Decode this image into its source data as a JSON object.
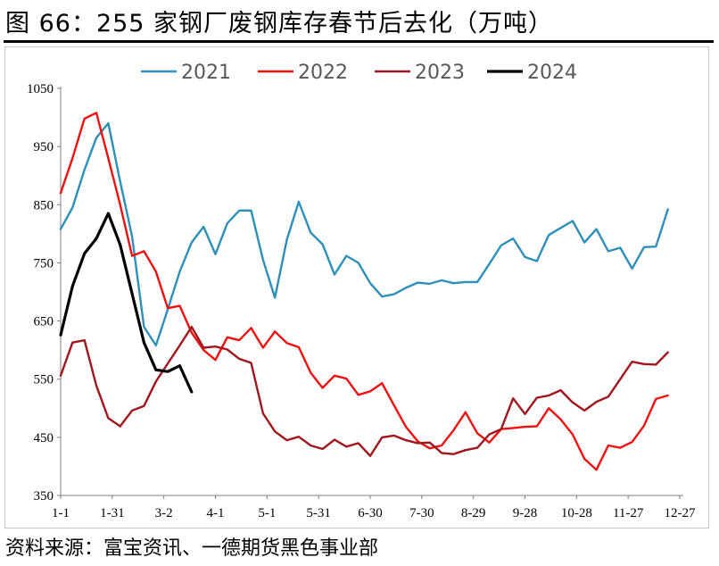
{
  "header": {
    "title": "图 66：255 家钢厂废钢库存春节后去化（万吨）"
  },
  "footer": {
    "source": "资料来源：富宝资讯、一德期货黑色事业部"
  },
  "chart_data": {
    "type": "line",
    "title": "",
    "xlabel": "",
    "ylabel": "",
    "ylim": [
      350,
      1050
    ],
    "yticks": [
      "350",
      "450",
      "550",
      "650",
      "750",
      "850",
      "950",
      "1050"
    ],
    "x_tick_labels": [
      "1-1",
      "1-31",
      "3-2",
      "4-1",
      "5-1",
      "5-31",
      "6-30",
      "7-30",
      "8-29",
      "9-28",
      "10-28",
      "11-27",
      "12-27"
    ],
    "x_axis_unit": "week index from 1-1 (ticks every ~4.3 weeks)",
    "grid": false,
    "legend_position": "top",
    "series": [
      {
        "name": "2021",
        "color": "#2e8fb8",
        "values": [
          [
            1,
            808
          ],
          [
            2,
            845
          ],
          [
            3,
            910
          ],
          [
            4,
            965
          ],
          [
            5,
            990
          ],
          [
            6,
            890
          ],
          [
            7,
            795
          ],
          [
            8,
            640
          ],
          [
            9,
            608
          ],
          [
            10,
            670
          ],
          [
            11,
            735
          ],
          [
            12,
            785
          ],
          [
            13,
            812
          ],
          [
            14,
            765
          ],
          [
            15,
            818
          ],
          [
            16,
            840
          ],
          [
            17,
            840
          ],
          [
            18,
            755
          ],
          [
            19,
            690
          ],
          [
            20,
            790
          ],
          [
            21,
            855
          ],
          [
            22,
            802
          ],
          [
            23,
            782
          ],
          [
            24,
            730
          ],
          [
            25,
            762
          ],
          [
            26,
            750
          ],
          [
            27,
            715
          ],
          [
            28,
            692
          ],
          [
            29,
            696
          ],
          [
            30,
            707
          ],
          [
            31,
            716
          ],
          [
            32,
            714
          ],
          [
            33,
            720
          ],
          [
            34,
            715
          ],
          [
            35,
            717
          ],
          [
            36,
            717
          ],
          [
            37,
            748
          ],
          [
            38,
            780
          ],
          [
            39,
            792
          ],
          [
            40,
            760
          ],
          [
            41,
            753
          ],
          [
            42,
            798
          ],
          [
            43,
            810
          ],
          [
            44,
            822
          ],
          [
            45,
            785
          ],
          [
            46,
            808
          ],
          [
            47,
            770
          ],
          [
            48,
            776
          ],
          [
            49,
            740
          ],
          [
            50,
            777
          ],
          [
            51,
            778
          ],
          [
            52,
            842
          ]
        ]
      },
      {
        "name": "2022",
        "color": "#f01010",
        "values": [
          [
            1,
            870
          ],
          [
            2,
            930
          ],
          [
            3,
            998
          ],
          [
            4,
            1008
          ],
          [
            5,
            930
          ],
          [
            6,
            850
          ],
          [
            7,
            762
          ],
          [
            8,
            770
          ],
          [
            9,
            735
          ],
          [
            10,
            672
          ],
          [
            11,
            676
          ],
          [
            12,
            630
          ],
          [
            13,
            600
          ],
          [
            14,
            583
          ],
          [
            15,
            622
          ],
          [
            16,
            617
          ],
          [
            17,
            638
          ],
          [
            18,
            604
          ],
          [
            19,
            632
          ],
          [
            20,
            612
          ],
          [
            21,
            605
          ],
          [
            22,
            561
          ],
          [
            23,
            535
          ],
          [
            24,
            556
          ],
          [
            25,
            551
          ],
          [
            26,
            523
          ],
          [
            27,
            529
          ],
          [
            28,
            543
          ],
          [
            29,
            505
          ],
          [
            30,
            468
          ],
          [
            31,
            443
          ],
          [
            32,
            431
          ],
          [
            33,
            436
          ],
          [
            34,
            462
          ],
          [
            35,
            493
          ],
          [
            36,
            457
          ],
          [
            37,
            441
          ],
          [
            38,
            464
          ],
          [
            39,
            466
          ],
          [
            40,
            468
          ],
          [
            41,
            469
          ],
          [
            42,
            500
          ],
          [
            43,
            481
          ],
          [
            44,
            455
          ],
          [
            45,
            413
          ],
          [
            46,
            394
          ],
          [
            47,
            436
          ],
          [
            48,
            432
          ],
          [
            49,
            442
          ],
          [
            50,
            470
          ],
          [
            51,
            516
          ],
          [
            52,
            522
          ]
        ]
      },
      {
        "name": "2023",
        "color": "#a0161e",
        "values": [
          [
            1,
            556
          ],
          [
            2,
            613
          ],
          [
            3,
            617
          ],
          [
            4,
            539
          ],
          [
            5,
            483
          ],
          [
            6,
            469
          ],
          [
            7,
            496
          ],
          [
            8,
            504
          ],
          [
            9,
            546
          ],
          [
            10,
            577
          ],
          [
            11,
            608
          ],
          [
            12,
            640
          ],
          [
            13,
            604
          ],
          [
            14,
            606
          ],
          [
            15,
            601
          ],
          [
            16,
            585
          ],
          [
            17,
            578
          ],
          [
            18,
            491
          ],
          [
            19,
            460
          ],
          [
            20,
            445
          ],
          [
            21,
            451
          ],
          [
            22,
            436
          ],
          [
            23,
            430
          ],
          [
            24,
            446
          ],
          [
            25,
            434
          ],
          [
            26,
            440
          ],
          [
            27,
            418
          ],
          [
            28,
            450
          ],
          [
            29,
            453
          ],
          [
            30,
            445
          ],
          [
            31,
            440
          ],
          [
            32,
            441
          ],
          [
            33,
            423
          ],
          [
            34,
            421
          ],
          [
            35,
            428
          ],
          [
            36,
            432
          ],
          [
            37,
            455
          ],
          [
            38,
            464
          ],
          [
            39,
            517
          ],
          [
            40,
            490
          ],
          [
            41,
            518
          ],
          [
            42,
            522
          ],
          [
            43,
            531
          ],
          [
            44,
            510
          ],
          [
            45,
            496
          ],
          [
            46,
            511
          ],
          [
            47,
            520
          ],
          [
            48,
            550
          ],
          [
            49,
            580
          ],
          [
            50,
            576
          ],
          [
            51,
            575
          ],
          [
            52,
            596
          ]
        ]
      },
      {
        "name": "2024",
        "color": "#000000",
        "values": [
          [
            1,
            626
          ],
          [
            2,
            710
          ],
          [
            3,
            766
          ],
          [
            4,
            792
          ],
          [
            5,
            835
          ],
          [
            6,
            781
          ],
          [
            7,
            697
          ],
          [
            8,
            613
          ],
          [
            9,
            566
          ],
          [
            10,
            563
          ],
          [
            11,
            573
          ],
          [
            12,
            528
          ]
        ]
      }
    ]
  }
}
